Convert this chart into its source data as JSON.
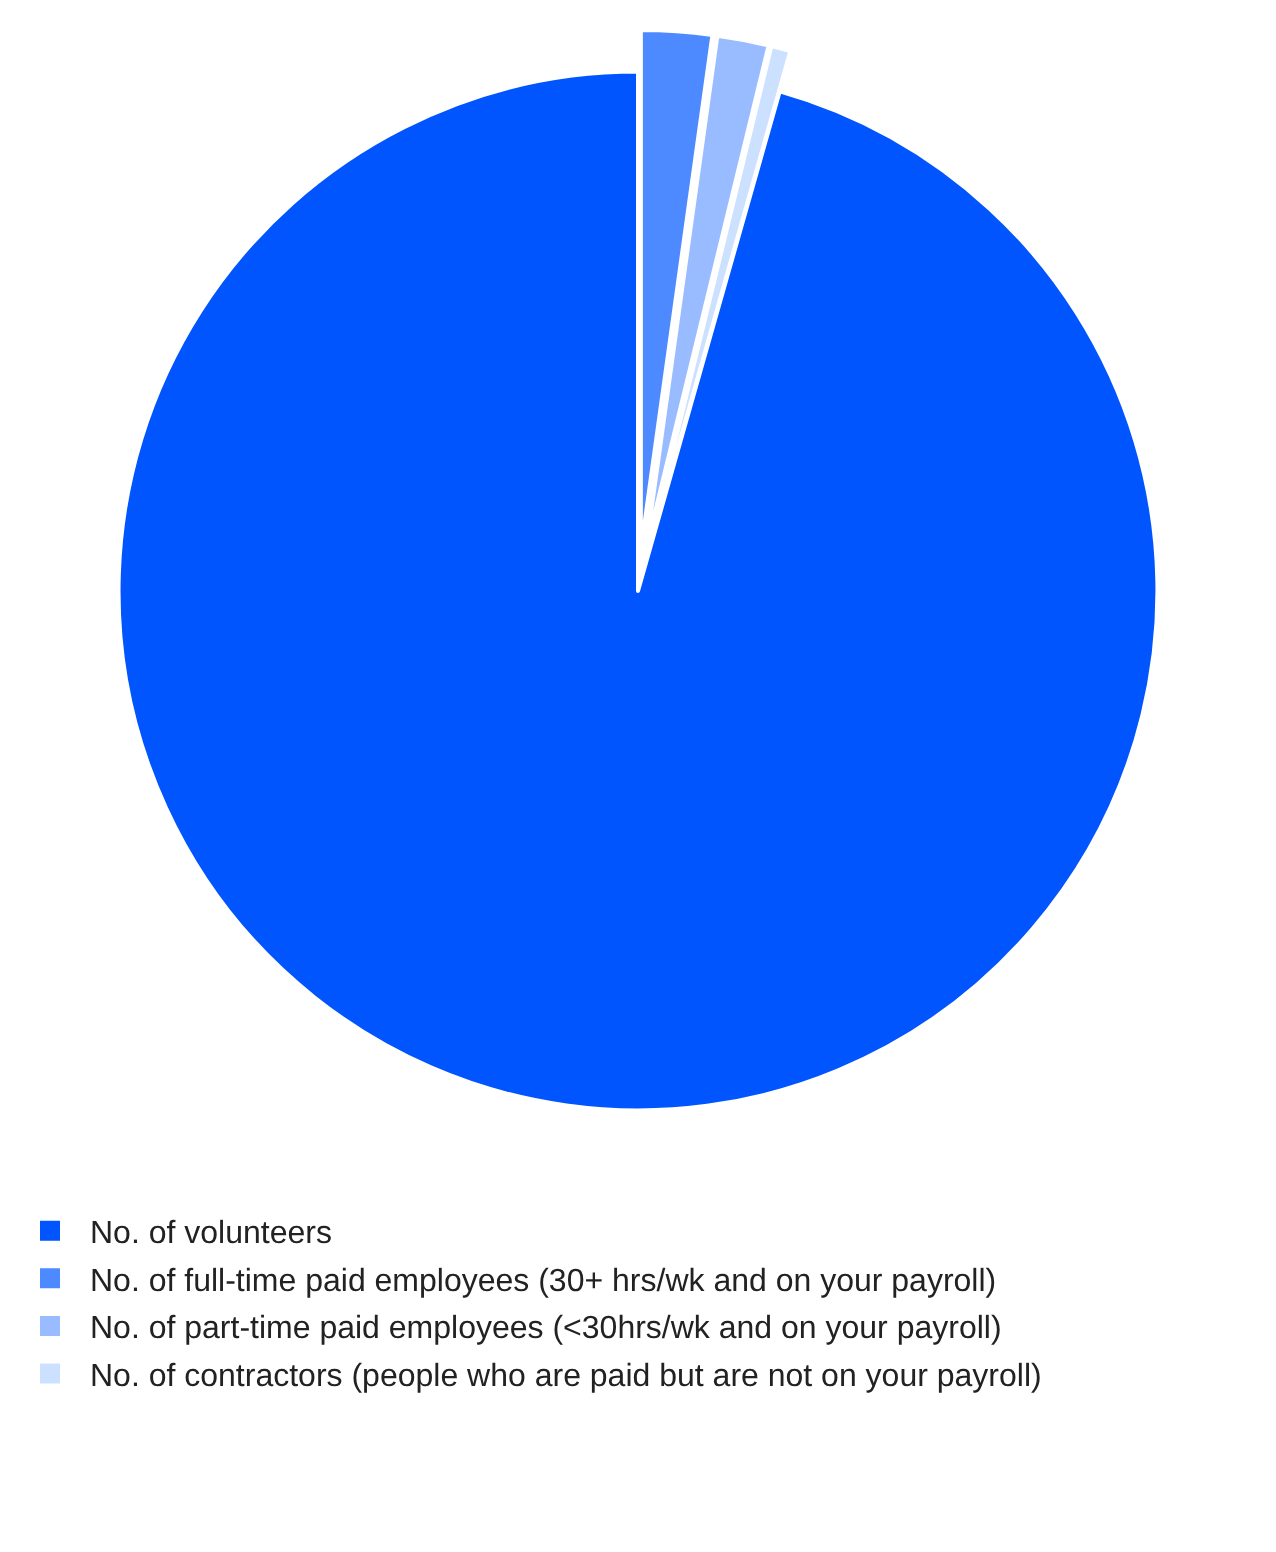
{
  "chart_data": {
    "type": "pie",
    "categories": [
      "No. of volunteers",
      "No. of full-time paid employees (30+ hrs/wk and on your payroll)",
      "No. of part-time paid employees (<30hrs/wk and on your payroll)",
      "No. of contractors (people who are paid but are not on your payroll)"
    ],
    "values": [
      95.6,
      2.2,
      1.6,
      0.6
    ],
    "colors": [
      "#0055ff",
      "#4d8aff",
      "#99bbff",
      "#cce0ff"
    ],
    "legend": "bottom"
  }
}
